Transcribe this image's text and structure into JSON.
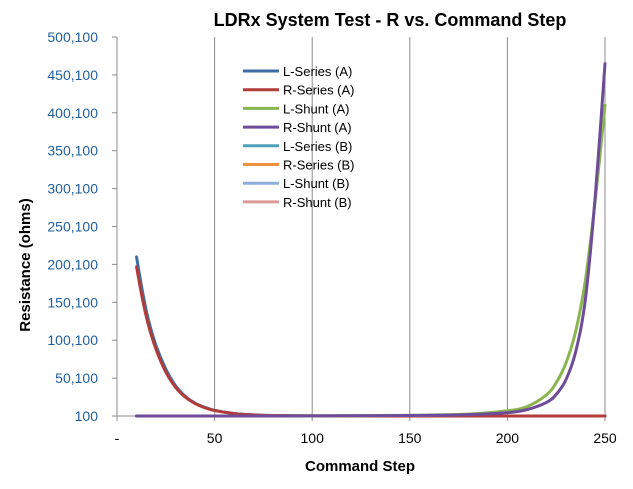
{
  "chart_data": {
    "type": "line",
    "title": "LDRx System Test - R vs. Command Step",
    "xlabel": "Command Step",
    "ylabel": "Resistance (ohms)",
    "xlim": [
      0,
      250
    ],
    "ylim": [
      100,
      500100
    ],
    "x_tick_labels": [
      "-",
      "50",
      "100",
      "150",
      "200",
      "250"
    ],
    "x_tick_values": [
      0,
      50,
      100,
      150,
      200,
      250
    ],
    "y_tick_labels": [
      "100",
      "50,100",
      "100,100",
      "150,100",
      "200,100",
      "250,100",
      "300,100",
      "350,100",
      "400,100",
      "450,100",
      "500,100"
    ],
    "y_tick_values": [
      100,
      50100,
      100100,
      150100,
      200100,
      250100,
      300100,
      350100,
      400100,
      450100,
      500100
    ],
    "grid": "vertical",
    "legend_position": "top-left",
    "series": [
      {
        "name": "L-Series (A)",
        "color": "#3e6ea5",
        "x": [
          10,
          13,
          16,
          20,
          25,
          30,
          35,
          40,
          45,
          50,
          60,
          70,
          80,
          100,
          150,
          200,
          250
        ],
        "values": [
          210000,
          165000,
          128000,
          93000,
          62000,
          40000,
          26000,
          17000,
          11500,
          7600,
          3400,
          1600,
          800,
          250,
          100,
          100,
          100
        ]
      },
      {
        "name": "R-Series (A)",
        "color": "#b13c3a",
        "x": [
          10,
          13,
          16,
          20,
          25,
          30,
          35,
          40,
          45,
          50,
          60,
          70,
          80,
          100,
          150,
          200,
          250
        ],
        "values": [
          197000,
          155000,
          121000,
          88000,
          58000,
          38000,
          25000,
          16500,
          11000,
          7300,
          3300,
          1500,
          750,
          240,
          100,
          100,
          100
        ]
      },
      {
        "name": "L-Shunt (A)",
        "color": "#8ab650",
        "x": [
          10,
          50,
          100,
          150,
          180,
          200,
          210,
          220,
          225,
          230,
          235,
          240,
          245,
          250
        ],
        "values": [
          100,
          100,
          300,
          1000,
          2600,
          7000,
          12500,
          28000,
          44000,
          70000,
          112000,
          180000,
          285000,
          410000
        ]
      },
      {
        "name": "R-Shunt (A)",
        "color": "#6f4c99",
        "x": [
          10,
          50,
          100,
          150,
          180,
          200,
          210,
          220,
          225,
          230,
          235,
          240,
          245,
          250
        ],
        "values": [
          100,
          100,
          250,
          800,
          1900,
          4500,
          8500,
          18000,
          28500,
          48000,
          85000,
          155000,
          290000,
          465000
        ]
      },
      {
        "name": "L-Series (B)",
        "color": "#4da2b8",
        "x": [],
        "values": []
      },
      {
        "name": "R-Series (B)",
        "color": "#f0913c",
        "x": [],
        "values": []
      },
      {
        "name": "L-Shunt (B)",
        "color": "#8eaedc",
        "x": [],
        "values": []
      },
      {
        "name": "R-Shunt (B)",
        "color": "#d99a97",
        "x": [],
        "values": []
      }
    ]
  }
}
